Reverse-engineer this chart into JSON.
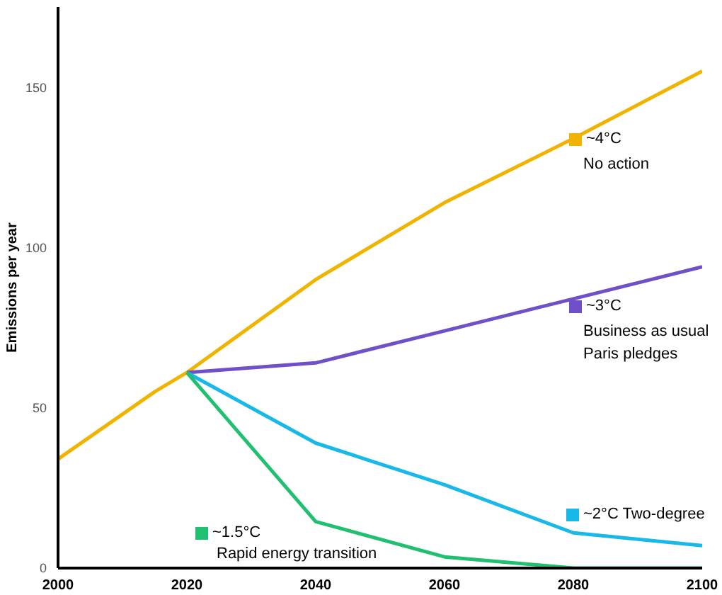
{
  "chart_data": {
    "type": "line",
    "ylabel": "Emissions per year",
    "x": [
      2000,
      2015,
      2020,
      2040,
      2060,
      2080,
      2100
    ],
    "xlim": [
      2000,
      2100
    ],
    "xticks": [
      2000,
      2020,
      2040,
      2060,
      2080,
      2100
    ],
    "ylim": [
      0,
      175
    ],
    "yticks": [
      0,
      50,
      100,
      150
    ],
    "grid": false,
    "legend": "right",
    "marker": "none",
    "line_style": "solid",
    "series": [
      {
        "name": "~4°C",
        "color": "#f0b400",
        "values": [
          34,
          55,
          61,
          90,
          114,
          134,
          155
        ]
      },
      {
        "name": "~3°C",
        "color": "#7050c8",
        "values": [
          null,
          null,
          61,
          64,
          74,
          84,
          94
        ]
      },
      {
        "name": "~2°C Two-degree",
        "color": "#18b8e8",
        "values": [
          null,
          null,
          61,
          39,
          26,
          11,
          7
        ]
      },
      {
        "name": "~1.5°C",
        "color": "#20c070",
        "values": [
          null,
          null,
          61,
          14.5,
          3.5,
          0,
          0
        ]
      }
    ],
    "annotations": [
      "No action",
      "Business as usual",
      "Paris pledges",
      "Rapid energy transition"
    ]
  }
}
